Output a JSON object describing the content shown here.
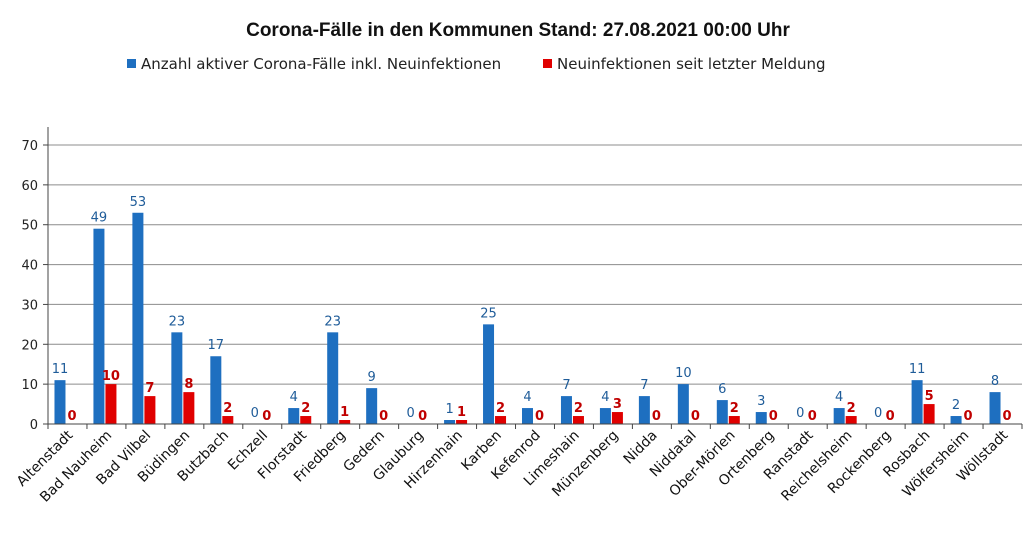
{
  "chart_data": {
    "type": "bar",
    "title": "Corona-Fälle in den Kommunen Stand: 27.08.2021 00:00 Uhr",
    "xlabel": "",
    "ylabel": "",
    "ylim": [
      0,
      70
    ],
    "yticks": [
      0,
      10,
      20,
      30,
      40,
      50,
      60,
      70
    ],
    "grid": true,
    "legend_position": "top",
    "categories": [
      "Altenstadt",
      "Bad Nauheim",
      "Bad Vilbel",
      "Büdingen",
      "Butzbach",
      "Echzell",
      "Florstadt",
      "Friedberg",
      "Gedern",
      "Glauburg",
      "Hirzenhain",
      "Karben",
      "Kefenrod",
      "Limeshain",
      "Münzenberg",
      "Nidda",
      "Niddatal",
      "Ober-Mörlen",
      "Ortenberg",
      "Ranstadt",
      "Reichelsheim",
      "Rockenberg",
      "Rosbach",
      "Wölfersheim",
      "Wöllstadt"
    ],
    "series": [
      {
        "name": "Anzahl aktiver Corona-Fälle inkl. Neuinfektionen",
        "color": "#1e6fc0",
        "label_color": "#1f5c99",
        "values": [
          11,
          49,
          53,
          23,
          17,
          0,
          4,
          23,
          9,
          0,
          1,
          25,
          4,
          7,
          4,
          7,
          10,
          6,
          3,
          0,
          4,
          0,
          11,
          2,
          8
        ]
      },
      {
        "name": "Neuinfektionen seit letzter Meldung",
        "color": "#e00000",
        "label_color": "#c00000",
        "values": [
          0,
          10,
          7,
          8,
          2,
          0,
          2,
          1,
          0,
          0,
          1,
          2,
          0,
          2,
          3,
          0,
          0,
          2,
          0,
          0,
          2,
          0,
          5,
          0,
          0
        ]
      }
    ]
  }
}
